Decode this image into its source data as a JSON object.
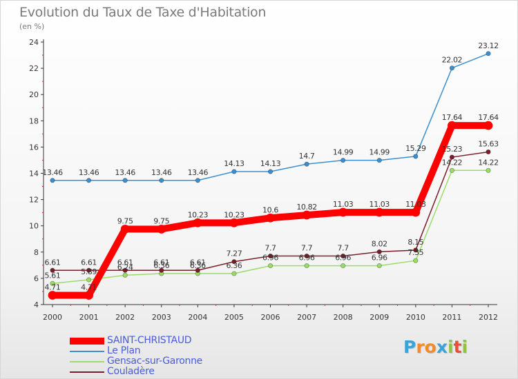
{
  "header": {
    "title": "Evolution du Taux de Taxe d'Habitation",
    "subtitle": "(en %)"
  },
  "logo": {
    "text": "Proxiti",
    "letters": [
      "P",
      "r",
      "o",
      "x",
      "i",
      "t",
      "i"
    ],
    "colors": [
      "#3aa3d8",
      "#f28c28",
      "#f28c28",
      "#3aa3d8",
      "#8cc63f",
      "#e94e3c",
      "#8cc63f"
    ]
  },
  "chart_data": {
    "type": "line",
    "x": [
      "2000",
      "2001",
      "2002",
      "2003",
      "2004",
      "2005",
      "2006",
      "2007",
      "2008",
      "2009",
      "2010",
      "2011",
      "2012"
    ],
    "ylim": [
      4,
      24
    ],
    "yticks": [
      "4",
      "6",
      "8",
      "10",
      "12",
      "14",
      "16",
      "18",
      "20",
      "22",
      "24"
    ],
    "grid": false,
    "legend_position": "bottom-left",
    "series": [
      {
        "name": "SAINT-CHRISTAUD",
        "color": "#ff0000",
        "emphasis": true,
        "values": [
          4.71,
          4.71,
          9.75,
          9.75,
          10.23,
          10.23,
          10.6,
          10.82,
          11.03,
          11.03,
          11.03,
          17.64,
          17.64
        ],
        "labels": [
          "4.71",
          "4.71",
          "9.75",
          "9.75",
          "10.23",
          "10.23",
          "10.6",
          "10.82",
          "11.03",
          "11.03",
          "11.03",
          "17.64",
          "17.64"
        ]
      },
      {
        "name": "Le Plan",
        "color": "#3a8fd0",
        "values": [
          13.46,
          13.46,
          13.46,
          13.46,
          13.46,
          14.13,
          14.13,
          14.7,
          14.99,
          14.99,
          15.29,
          22.02,
          23.12
        ],
        "labels": [
          "13.46",
          "13.46",
          "13.46",
          "13.46",
          "13.46",
          "14.13",
          "14.13",
          "14.7",
          "14.99",
          "14.99",
          "15.29",
          "22.02",
          "23.12"
        ]
      },
      {
        "name": "Gensac-sur-Garonne",
        "color": "#99dd66",
        "values": [
          5.61,
          5.89,
          6.24,
          6.36,
          6.36,
          6.36,
          6.96,
          6.96,
          6.96,
          6.96,
          7.35,
          14.22,
          14.22
        ],
        "labels": [
          "5.61",
          "5.89",
          "6.24",
          "6.36",
          "6.36",
          "6.36",
          "6.96",
          "6.96",
          "6.96",
          "6.96",
          "7.35",
          "14.22",
          "14.22"
        ]
      },
      {
        "name": "Couladère",
        "color": "#7a1d2a",
        "values": [
          6.61,
          6.61,
          6.61,
          6.61,
          6.61,
          7.27,
          7.7,
          7.7,
          7.7,
          8.02,
          8.15,
          15.23,
          15.63
        ],
        "labels": [
          "6.61",
          "6.61",
          "6.61",
          "6.61",
          "6.61",
          "7.27",
          "7.7",
          "7.7",
          "7.7",
          "8.02",
          "8.15",
          "15.23",
          "15.63"
        ]
      }
    ]
  }
}
